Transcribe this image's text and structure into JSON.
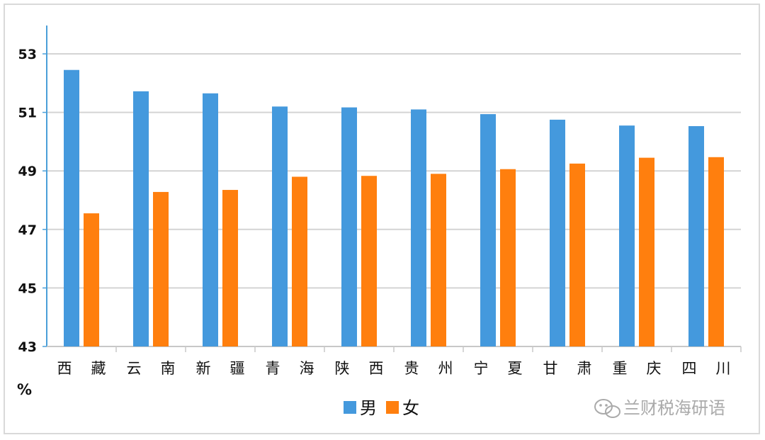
{
  "chart_data": {
    "type": "bar",
    "unit_label": "%",
    "ylim": [
      43,
      53
    ],
    "yticks": [
      43,
      45,
      47,
      49,
      51,
      53
    ],
    "grid": true,
    "legend_position": "bottom-center",
    "categories": [
      "西 藏",
      "云 南",
      "新 疆",
      "青 海",
      "陕 西",
      "贵 州",
      "宁 夏",
      "甘 肃",
      "重 庆",
      "四 川"
    ],
    "series": [
      {
        "name": "男",
        "color": "#4499dd",
        "values": [
          52.45,
          51.72,
          51.65,
          51.2,
          51.17,
          51.1,
          50.94,
          50.75,
          50.55,
          50.53
        ]
      },
      {
        "name": "女",
        "color": "#ff7f0e",
        "values": [
          47.55,
          48.28,
          48.35,
          48.8,
          48.83,
          48.9,
          49.06,
          49.25,
          49.45,
          49.47
        ]
      }
    ]
  },
  "watermark": {
    "text": "兰财税海研语",
    "icon": "wechat-icon"
  }
}
